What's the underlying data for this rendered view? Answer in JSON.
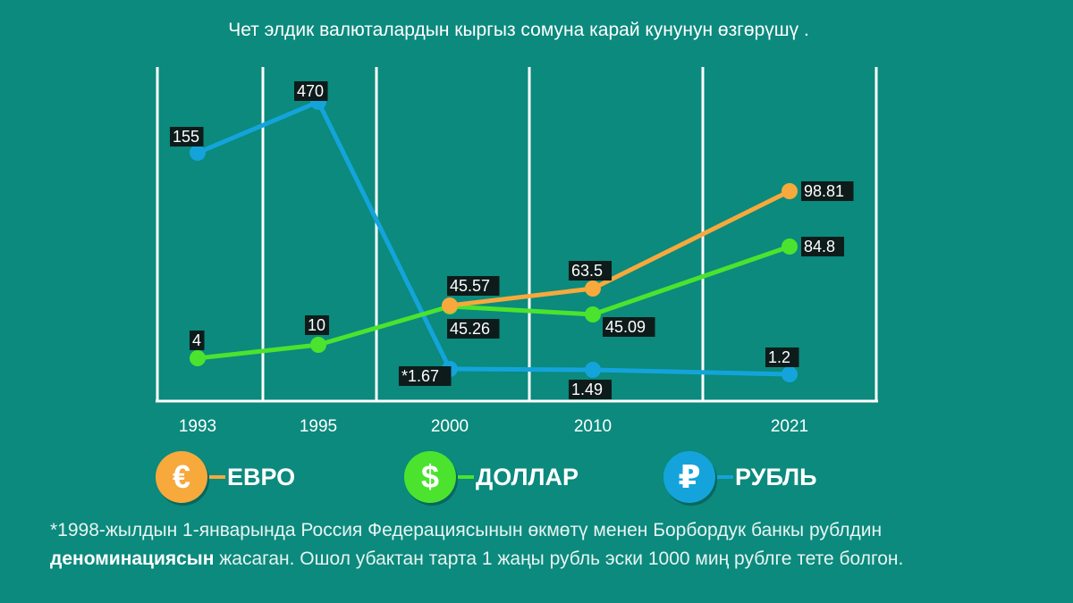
{
  "title": "Чет элдик валюталардын кыргыз сомуна карай кунунун өзгөрүшү .",
  "chart_data": {
    "type": "line",
    "categories": [
      "1993",
      "1995",
      "2000",
      "2010",
      "2021"
    ],
    "series": [
      {
        "name": "ЕВРО",
        "key": "euro",
        "color": "#f7a93c",
        "values": [
          null,
          null,
          45.57,
          63.5,
          98.81
        ],
        "labels": [
          null,
          null,
          "45.57",
          "63.5",
          "98.81"
        ]
      },
      {
        "name": "ДОЛЛАР",
        "key": "dollar",
        "color": "#4be32e",
        "values": [
          4,
          10,
          45.26,
          45.09,
          84.8
        ],
        "labels": [
          "4",
          "10",
          "45.26",
          "45.09",
          "84.8"
        ]
      },
      {
        "name": "РУБЛЬ",
        "key": "ruble",
        "color": "#14a4db",
        "values": [
          155,
          470,
          1.67,
          1.49,
          1.2
        ],
        "labels": [
          "155",
          "470",
          "*1.67",
          "1.49",
          "1.2"
        ]
      }
    ],
    "grid": true,
    "legend_position": "bottom"
  },
  "legend": {
    "euro": {
      "symbol": "€",
      "label": "ЕВРО",
      "color": "#f7a93c"
    },
    "dollar": {
      "symbol": "$",
      "label": "ДОЛЛАР",
      "color": "#4be32e"
    },
    "ruble": {
      "symbol": "₽",
      "label": "РУБЛЬ",
      "color": "#14a4db"
    }
  },
  "footnote": {
    "line1": "*1998-жылдын 1-январында Россия Федерациясынын өкмөтү менен Борбордук банкы рублдин",
    "highlight": "деноминациясын",
    "line2": " жасаган. Ошол убактан тарта 1 жаңы рубль эски 1000 миң рублге тете болгон."
  }
}
